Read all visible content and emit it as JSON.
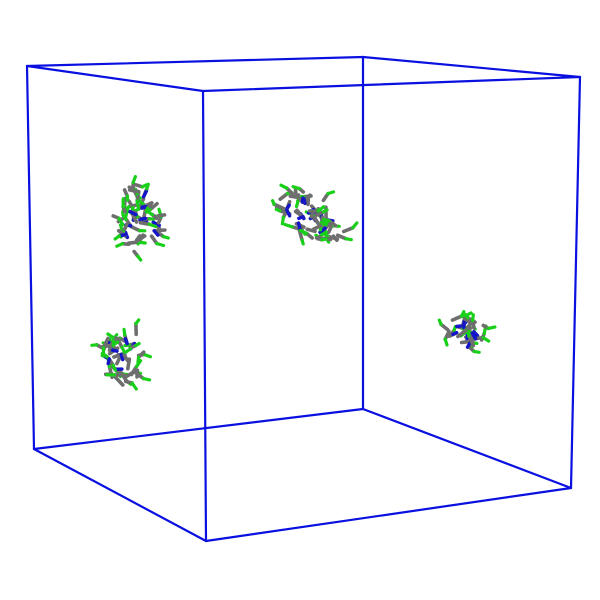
{
  "scene": {
    "background": "#ffffff",
    "box_color": "#0a10e0",
    "atom_colors": {
      "carbon": "#6e6e6e",
      "nitrogen": "#1414c8",
      "terminal": "#18d018"
    },
    "cluster_count": 4,
    "clusters": [
      {
        "id": "upper-left"
      },
      {
        "id": "upper-middle"
      },
      {
        "id": "lower-left"
      },
      {
        "id": "right"
      }
    ]
  }
}
